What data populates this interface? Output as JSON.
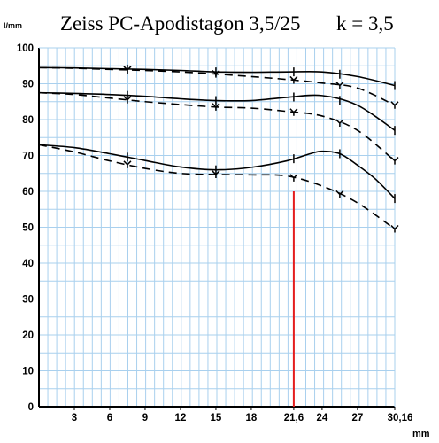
{
  "chart_data": {
    "type": "line",
    "title": "Zeiss PC-Apodistagon 3,5/25",
    "aperture_label": "k = 3,5",
    "ylabel": "l/mm",
    "xlabel": "mm",
    "xlim": [
      0,
      30.16
    ],
    "ylim": [
      0,
      100
    ],
    "x_ticks": [
      3,
      6,
      9,
      12,
      15,
      18,
      21.6,
      24,
      27,
      30.16
    ],
    "x_tick_labels": [
      "3",
      "6",
      "9",
      "12",
      "15",
      "18",
      "21,6",
      "24",
      "27",
      "30,16"
    ],
    "y_ticks": [
      0,
      10,
      20,
      30,
      40,
      50,
      60,
      70,
      80,
      90,
      100
    ],
    "grid": true,
    "grid_color": "#a9d0ee",
    "series": [
      {
        "style": "solid",
        "color": "#000000",
        "marker": "tick",
        "x": [
          0,
          3,
          6,
          9,
          12,
          15,
          18,
          21,
          24,
          27,
          30.16
        ],
        "y": [
          94.5,
          94.4,
          94.2,
          94,
          93.7,
          93.3,
          93.2,
          93.3,
          93.3,
          92,
          89.5
        ]
      },
      {
        "style": "dashed",
        "color": "#000000",
        "marker": "y",
        "x": [
          0,
          3,
          6,
          9,
          12,
          15,
          18,
          21,
          24,
          27,
          30.16
        ],
        "y": [
          94.5,
          94.3,
          94,
          93.7,
          93.3,
          92.7,
          92,
          91.2,
          90.2,
          88.8,
          84
        ]
      },
      {
        "style": "solid",
        "color": "#000000",
        "marker": "tick",
        "x": [
          0,
          3,
          6,
          9,
          12,
          15,
          18,
          21,
          24,
          27,
          30.16
        ],
        "y": [
          87.5,
          87.3,
          87,
          86.5,
          85.8,
          85.3,
          85.3,
          86.2,
          86.7,
          84,
          77
        ]
      },
      {
        "style": "dashed",
        "color": "#000000",
        "marker": "y",
        "x": [
          0,
          3,
          6,
          9,
          12,
          15,
          18,
          21,
          24,
          27,
          30.16
        ],
        "y": [
          87.5,
          87,
          86,
          85,
          84.2,
          83.5,
          83.2,
          82.3,
          81,
          77,
          68.5
        ]
      },
      {
        "style": "solid",
        "color": "#000000",
        "marker": "tick",
        "x": [
          0,
          3,
          6,
          9,
          12,
          15,
          18,
          21,
          23,
          24,
          25.5,
          27,
          28.5,
          30.16
        ],
        "y": [
          73,
          72.2,
          70.5,
          68.6,
          66.8,
          66,
          66.7,
          68.5,
          70.5,
          71.2,
          70.5,
          67.3,
          63.5,
          58
        ]
      },
      {
        "style": "dashed",
        "color": "#000000",
        "marker": "y",
        "x": [
          0,
          3,
          6,
          9,
          12,
          15,
          18,
          21,
          24,
          27,
          30.16
        ],
        "y": [
          73,
          71,
          68.5,
          66.4,
          65,
          64.7,
          64.6,
          64.3,
          61.5,
          56.8,
          49.5
        ]
      },
      {
        "style": "marker",
        "color": "#e41d1d",
        "x": [
          21.6,
          21.6
        ],
        "y": [
          0,
          60
        ]
      }
    ]
  }
}
